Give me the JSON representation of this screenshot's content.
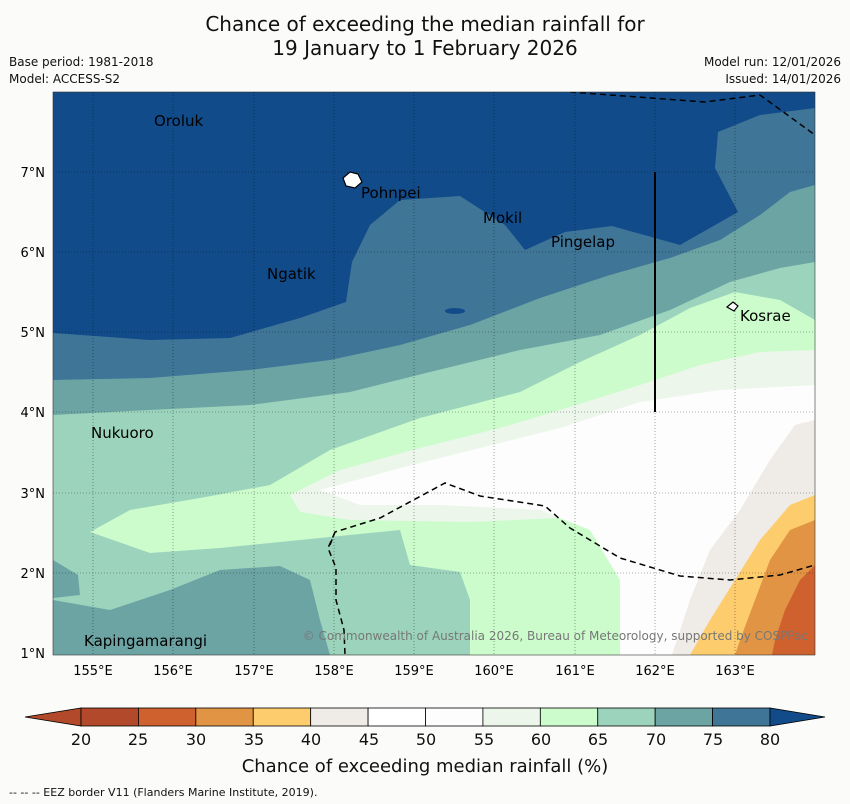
{
  "header": {
    "title_line1": "Chance of exceeding the median rainfall for",
    "title_line2": "19 January to 1 February 2026",
    "base_period": "Base period: 1981-2018",
    "model": "Model: ACCESS-S2",
    "model_run": "Model run: 12/01/2026",
    "issued": "Issued: 14/01/2026"
  },
  "map": {
    "lat_ticks": [
      "1°N",
      "2°N",
      "3°N",
      "4°N",
      "5°N",
      "6°N",
      "7°N"
    ],
    "lon_ticks": [
      "155°E",
      "156°E",
      "157°E",
      "158°E",
      "159°E",
      "160°E",
      "161°E",
      "162°E",
      "163°E"
    ],
    "places": [
      "Oroluk",
      "Pohnpei",
      "Mokil",
      "Pingelap",
      "Ngatik",
      "Kosrae",
      "Nukuoro",
      "Kapingamarangi"
    ],
    "copyright": "© Commonwealth of Australia 2026, Bureau of Meteorology, supported by COSPPac"
  },
  "colorbar": {
    "labels": [
      "20",
      "25",
      "30",
      "35",
      "40",
      "45",
      "50",
      "55",
      "60",
      "65",
      "70",
      "75",
      "80"
    ],
    "colors": [
      "#b1492a",
      "#cf612f",
      "#e19444",
      "#fdcc6d",
      "#efebe7",
      "#ffffff",
      "#fdfdfd",
      "#ecf6ea",
      "#ccfccc",
      "#9cd3bc",
      "#6ca4a4",
      "#3f7597",
      "#124b89"
    ],
    "title": "Chance of exceeding median rainfall (%)"
  },
  "footer": "--  --  -- EEZ border V11 (Flanders Marine Institute, 2019)."
}
